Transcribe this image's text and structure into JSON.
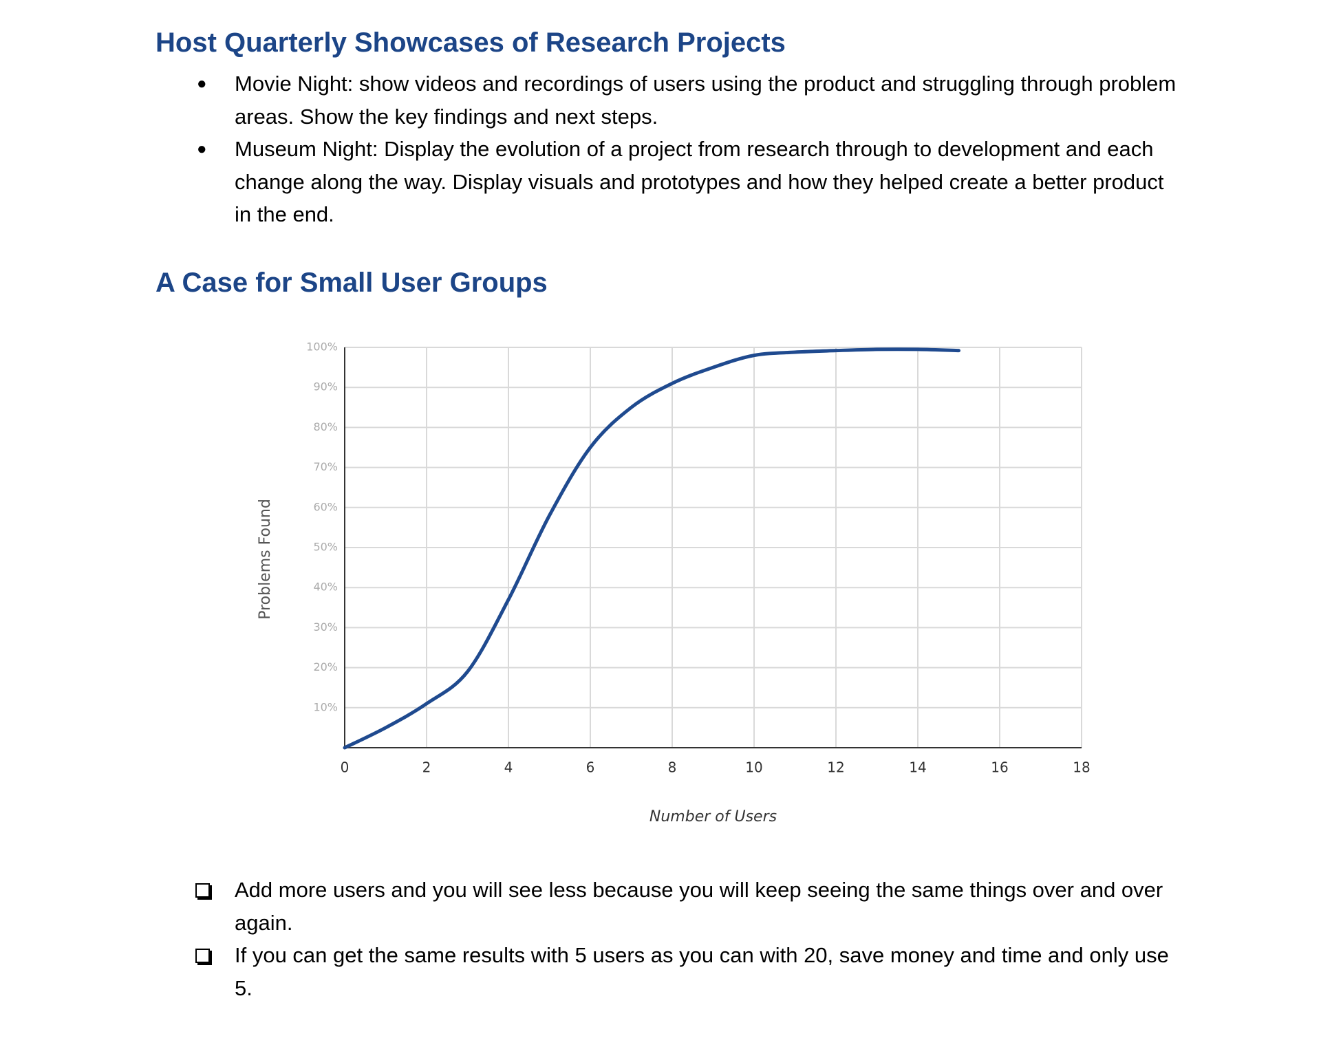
{
  "sections": [
    {
      "heading": "Host Quarterly Showcases of Research Projects",
      "items": [
        "Movie Night: show videos and recordings of users using the product and struggling through problem areas. Show the key findings and next steps.",
        "Museum Night: Display the evolution of a project from research through to development and each change along the way. Display visuals and prototypes and how they helped create a better product in the end."
      ]
    },
    {
      "heading": "A Case for Small User Groups"
    }
  ],
  "chart_data": {
    "type": "line",
    "x_label": "Number of Users",
    "y_label": "Problems Found",
    "x": [
      0,
      1,
      2,
      3,
      4,
      5,
      6,
      7,
      8,
      9,
      10,
      11,
      12,
      13,
      14,
      15
    ],
    "series": [
      {
        "name": "Problems Found",
        "color": "#1f4a8f",
        "values": [
          0,
          5,
          11,
          19,
          37,
          58,
          75,
          85,
          91,
          95,
          98,
          98.8,
          99.2,
          99.5,
          99.5,
          99.2
        ]
      }
    ],
    "xlim": [
      0,
      18
    ],
    "xticks": [
      0,
      2,
      4,
      6,
      8,
      10,
      12,
      14,
      16,
      18
    ],
    "ylim": [
      0,
      100
    ],
    "yticks": [
      {
        "value": 10,
        "label": "10%"
      },
      {
        "value": 20,
        "label": "20%"
      },
      {
        "value": 30,
        "label": "30%"
      },
      {
        "value": 40,
        "label": "40%"
      },
      {
        "value": 50,
        "label": "50%"
      },
      {
        "value": 60,
        "label": "60%"
      },
      {
        "value": 70,
        "label": "70%"
      },
      {
        "value": 80,
        "label": "80%"
      },
      {
        "value": 90,
        "label": "90%"
      },
      {
        "value": 100,
        "label": "100%"
      }
    ],
    "grid": true
  },
  "checklist": [
    "Add more users and you will see less because you will keep seeing the same things over and over again.",
    "If you can get the same results with 5 users as you can with 20, save money and time and only use 5."
  ]
}
